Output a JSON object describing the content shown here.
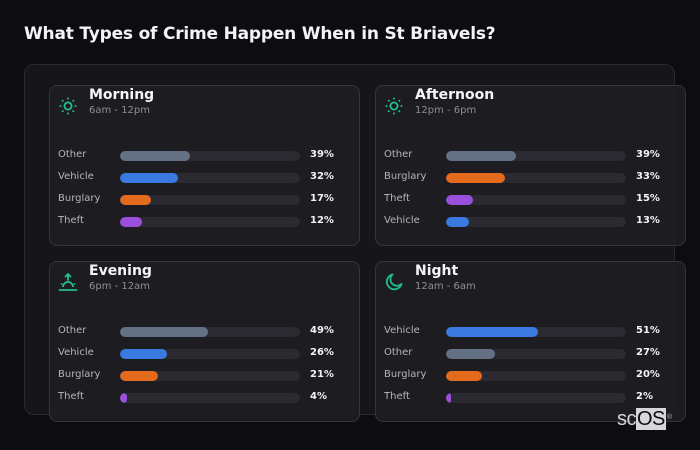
{
  "header": {
    "title": "What Types of Crime Happen When in St Briavels?"
  },
  "colors": {
    "Other": "#647185",
    "Vehicle": "#3a7ae0",
    "Burglary": "#e46a1e",
    "Theft": "#9a50dc",
    "icon": "#21c08e"
  },
  "periods": [
    {
      "name": "Morning",
      "range": "6am - 12pm",
      "icon": "sun-icon",
      "rows": [
        {
          "label": "Other",
          "value": 39,
          "display": "39%"
        },
        {
          "label": "Vehicle",
          "value": 32,
          "display": "32%"
        },
        {
          "label": "Burglary",
          "value": 17,
          "display": "17%"
        },
        {
          "label": "Theft",
          "value": 12,
          "display": "12%"
        }
      ]
    },
    {
      "name": "Afternoon",
      "range": "12pm - 6pm",
      "icon": "sun-icon",
      "rows": [
        {
          "label": "Other",
          "value": 39,
          "display": "39%"
        },
        {
          "label": "Burglary",
          "value": 33,
          "display": "33%"
        },
        {
          "label": "Theft",
          "value": 15,
          "display": "15%"
        },
        {
          "label": "Vehicle",
          "value": 13,
          "display": "13%"
        }
      ]
    },
    {
      "name": "Evening",
      "range": "6pm - 12am",
      "icon": "sunset-icon",
      "rows": [
        {
          "label": "Other",
          "value": 49,
          "display": "49%"
        },
        {
          "label": "Vehicle",
          "value": 26,
          "display": "26%"
        },
        {
          "label": "Burglary",
          "value": 21,
          "display": "21%"
        },
        {
          "label": "Theft",
          "value": 4,
          "display": "4%"
        }
      ]
    },
    {
      "name": "Night",
      "range": "12am - 6am",
      "icon": "moon-icon",
      "rows": [
        {
          "label": "Vehicle",
          "value": 51,
          "display": "51%"
        },
        {
          "label": "Other",
          "value": 27,
          "display": "27%"
        },
        {
          "label": "Burglary",
          "value": 20,
          "display": "20%"
        },
        {
          "label": "Theft",
          "value": 2,
          "display": "2%"
        }
      ]
    }
  ],
  "logo": {
    "sc": "sc",
    "os": "OS",
    "reg": "®"
  },
  "chart_data": [
    {
      "type": "bar",
      "orientation": "horizontal",
      "title": "Morning",
      "subtitle": "6am - 12pm",
      "categories": [
        "Other",
        "Vehicle",
        "Burglary",
        "Theft"
      ],
      "values": [
        39,
        32,
        17,
        12
      ],
      "unit": "%",
      "xlim": [
        0,
        100
      ]
    },
    {
      "type": "bar",
      "orientation": "horizontal",
      "title": "Afternoon",
      "subtitle": "12pm - 6pm",
      "categories": [
        "Other",
        "Burglary",
        "Theft",
        "Vehicle"
      ],
      "values": [
        39,
        33,
        15,
        13
      ],
      "unit": "%",
      "xlim": [
        0,
        100
      ]
    },
    {
      "type": "bar",
      "orientation": "horizontal",
      "title": "Evening",
      "subtitle": "6pm - 12am",
      "categories": [
        "Other",
        "Vehicle",
        "Burglary",
        "Theft"
      ],
      "values": [
        49,
        26,
        21,
        4
      ],
      "unit": "%",
      "xlim": [
        0,
        100
      ]
    },
    {
      "type": "bar",
      "orientation": "horizontal",
      "title": "Night",
      "subtitle": "12am - 6am",
      "categories": [
        "Vehicle",
        "Other",
        "Burglary",
        "Theft"
      ],
      "values": [
        51,
        27,
        20,
        2
      ],
      "unit": "%",
      "xlim": [
        0,
        100
      ]
    }
  ]
}
